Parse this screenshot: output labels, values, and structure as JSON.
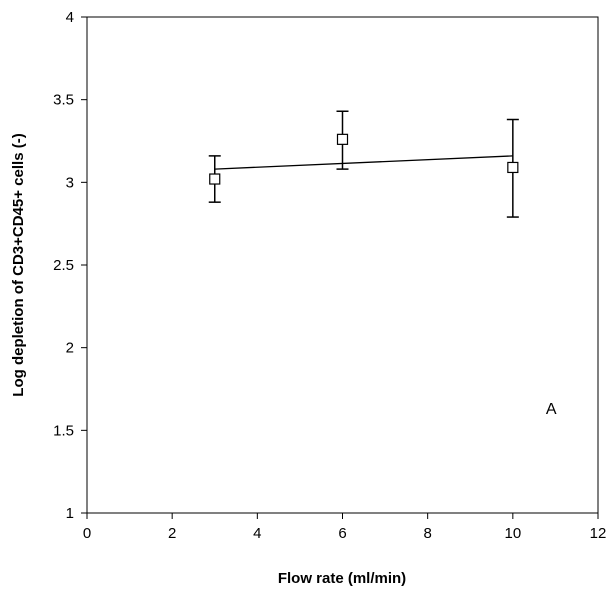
{
  "chart_data": {
    "type": "scatter",
    "title": "",
    "xlabel": "Flow rate (ml/min)",
    "ylabel": "Log depletion of CD3+CD45+ cells (-)",
    "xlim": [
      0,
      12
    ],
    "ylim": [
      1,
      4
    ],
    "xticks": [
      0,
      2,
      4,
      6,
      8,
      10,
      12
    ],
    "yticks": [
      1,
      1.5,
      2,
      2.5,
      3,
      3.5,
      4
    ],
    "xtick_labels": [
      "0",
      "2",
      "4",
      "6",
      "8",
      "10",
      "12"
    ],
    "ytick_labels": [
      "1",
      "1.5",
      "2",
      "2.5",
      "3",
      "3.5",
      "4"
    ],
    "grid": false,
    "series": [
      {
        "marker": "open-square",
        "points": [
          {
            "x": 3,
            "y": 3.02,
            "err_low": 2.88,
            "err_high": 3.16
          },
          {
            "x": 6,
            "y": 3.26,
            "err_low": 3.08,
            "err_high": 3.43
          },
          {
            "x": 10,
            "y": 3.09,
            "err_low": 2.79,
            "err_high": 3.38
          }
        ]
      }
    ],
    "trendline": {
      "type": "linear",
      "points": [
        {
          "x": 3,
          "y": 3.08
        },
        {
          "x": 10,
          "y": 3.16
        }
      ]
    },
    "annotations": [
      {
        "text": "A",
        "x": 10.9,
        "y": 1.6
      }
    ]
  }
}
